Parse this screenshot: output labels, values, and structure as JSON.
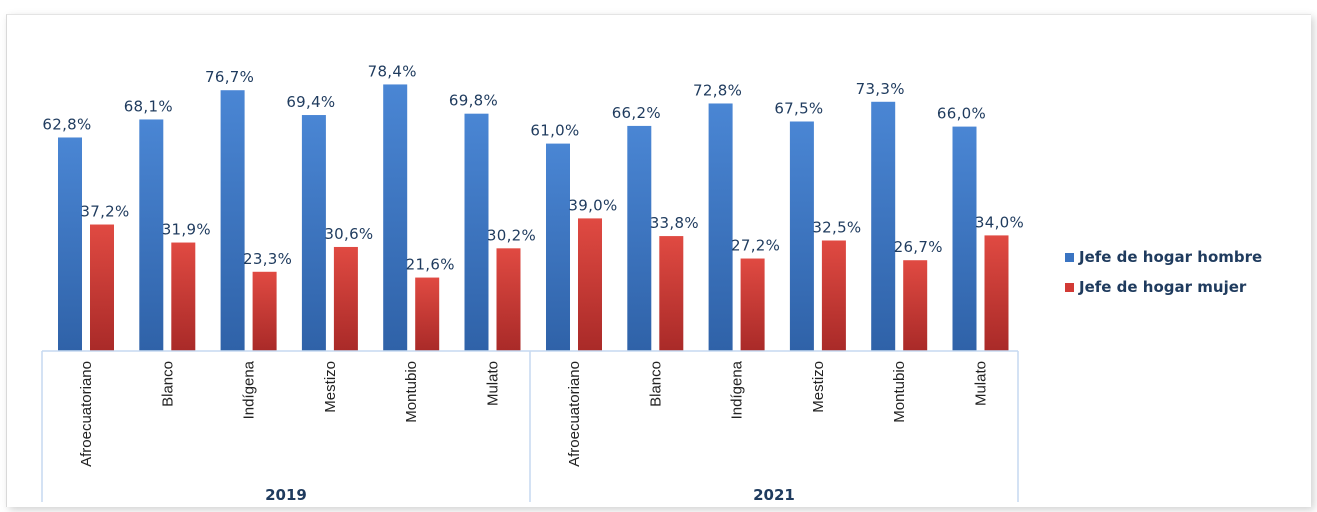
{
  "colors": {
    "series_hombre": "#3a74c2",
    "series_mujer": "#d23a35",
    "axis_box": "#c6d9f0",
    "label_text": "#1f3b5e"
  },
  "chart_data": {
    "type": "bar",
    "groups": [
      {
        "year": "2019",
        "categories": [
          "Afroecuatoriano",
          "Blanco",
          "Indígena",
          "Mestizo",
          "Montubio",
          "Mulato"
        ]
      },
      {
        "year": "2021",
        "categories": [
          "Afroecuatoriano",
          "Blanco",
          "Indígena",
          "Mestizo",
          "Montubio",
          "Mulato"
        ]
      }
    ],
    "series": [
      {
        "name": "Jefe de hogar hombre",
        "values": [
          62.8,
          68.1,
          76.7,
          69.4,
          78.4,
          69.8,
          61.0,
          66.2,
          72.8,
          67.5,
          73.3,
          66.0
        ],
        "labels": [
          "62,8%",
          "68,1%",
          "76,7%",
          "69,4%",
          "78,4%",
          "69,8%",
          "61,0%",
          "66,2%",
          "72,8%",
          "67,5%",
          "73,3%",
          "66,0%"
        ]
      },
      {
        "name": "Jefe de hogar mujer",
        "values": [
          37.2,
          31.9,
          23.3,
          30.6,
          21.6,
          30.2,
          39.0,
          33.8,
          27.2,
          32.5,
          26.7,
          34.0
        ],
        "labels": [
          "37,2%",
          "31,9%",
          "23,3%",
          "30,6%",
          "21,6%",
          "30,2%",
          "39,0%",
          "33,8%",
          "27,2%",
          "32,5%",
          "26,7%",
          "34,0%"
        ]
      }
    ],
    "ylim": [
      0,
      100
    ],
    "grid": false,
    "legend_position": "right"
  }
}
